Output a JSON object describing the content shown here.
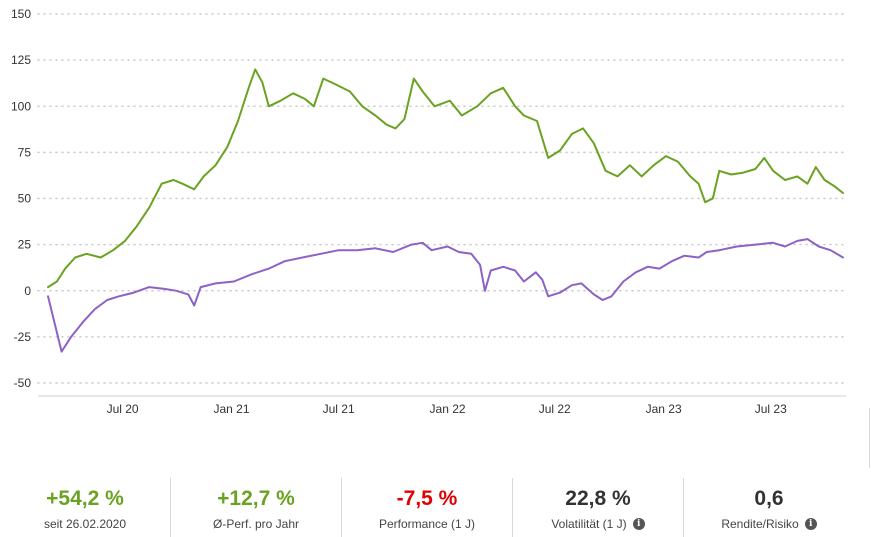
{
  "colors": {
    "green": "#6aa222",
    "purple": "#8c62c6",
    "red": "#e00000",
    "dark": "#333333"
  },
  "chart_data": {
    "type": "line",
    "x_range": [
      "2020-02-26",
      "2023-10-31"
    ],
    "ylim": [
      -50,
      150
    ],
    "yticks": [
      150,
      125,
      100,
      75,
      50,
      25,
      0,
      -25,
      -50
    ],
    "ytick_labels": [
      "150",
      "125",
      "100",
      "75",
      "50",
      "25",
      "0",
      "-25",
      "-50"
    ],
    "xticks": [
      {
        "date": "2020-07-01",
        "label": "Jul 20"
      },
      {
        "date": "2021-01-01",
        "label": "Jan 21"
      },
      {
        "date": "2021-07-01",
        "label": "Jul 21"
      },
      {
        "date": "2022-01-01",
        "label": "Jan 22"
      },
      {
        "date": "2022-07-01",
        "label": "Jul 22"
      },
      {
        "date": "2023-01-01",
        "label": "Jan 23"
      },
      {
        "date": "2023-07-01",
        "label": "Jul 23"
      }
    ],
    "grid": true,
    "series": [
      {
        "color": "green",
        "points": [
          [
            "2020-02-26",
            2
          ],
          [
            "2020-03-12",
            5
          ],
          [
            "2020-03-26",
            12
          ],
          [
            "2020-04-12",
            18
          ],
          [
            "2020-05-01",
            20
          ],
          [
            "2020-05-25",
            18
          ],
          [
            "2020-06-15",
            22
          ],
          [
            "2020-07-05",
            27
          ],
          [
            "2020-07-25",
            35
          ],
          [
            "2020-08-15",
            45
          ],
          [
            "2020-09-05",
            58
          ],
          [
            "2020-09-25",
            60
          ],
          [
            "2020-10-10",
            58
          ],
          [
            "2020-10-30",
            55
          ],
          [
            "2020-11-15",
            62
          ],
          [
            "2020-12-05",
            68
          ],
          [
            "2020-12-25",
            78
          ],
          [
            "2021-01-12",
            92
          ],
          [
            "2021-01-30",
            110
          ],
          [
            "2021-02-10",
            120
          ],
          [
            "2021-02-22",
            113
          ],
          [
            "2021-03-05",
            100
          ],
          [
            "2021-03-25",
            103
          ],
          [
            "2021-04-15",
            107
          ],
          [
            "2021-05-05",
            104
          ],
          [
            "2021-05-20",
            100
          ],
          [
            "2021-06-05",
            115
          ],
          [
            "2021-06-25",
            112
          ],
          [
            "2021-07-20",
            108
          ],
          [
            "2021-08-10",
            100
          ],
          [
            "2021-09-01",
            95
          ],
          [
            "2021-09-20",
            90
          ],
          [
            "2021-10-05",
            88
          ],
          [
            "2021-10-20",
            93
          ],
          [
            "2021-11-05",
            115
          ],
          [
            "2021-11-20",
            108
          ],
          [
            "2021-12-10",
            100
          ],
          [
            "2022-01-05",
            103
          ],
          [
            "2022-01-25",
            95
          ],
          [
            "2022-02-20",
            100
          ],
          [
            "2022-03-15",
            107
          ],
          [
            "2022-04-05",
            110
          ],
          [
            "2022-04-25",
            100
          ],
          [
            "2022-05-10",
            95
          ],
          [
            "2022-06-01",
            92
          ],
          [
            "2022-06-20",
            72
          ],
          [
            "2022-07-10",
            76
          ],
          [
            "2022-07-30",
            85
          ],
          [
            "2022-08-18",
            88
          ],
          [
            "2022-09-05",
            80
          ],
          [
            "2022-09-25",
            65
          ],
          [
            "2022-10-15",
            62
          ],
          [
            "2022-11-05",
            68
          ],
          [
            "2022-11-25",
            62
          ],
          [
            "2022-12-15",
            68
          ],
          [
            "2023-01-05",
            73
          ],
          [
            "2023-01-25",
            70
          ],
          [
            "2023-02-15",
            62
          ],
          [
            "2023-03-01",
            58
          ],
          [
            "2023-03-12",
            48
          ],
          [
            "2023-03-25",
            50
          ],
          [
            "2023-04-05",
            65
          ],
          [
            "2023-04-25",
            63
          ],
          [
            "2023-05-15",
            64
          ],
          [
            "2023-06-05",
            66
          ],
          [
            "2023-06-20",
            72
          ],
          [
            "2023-07-05",
            65
          ],
          [
            "2023-07-25",
            60
          ],
          [
            "2023-08-15",
            62
          ],
          [
            "2023-09-01",
            58
          ],
          [
            "2023-09-15",
            67
          ],
          [
            "2023-09-30",
            60
          ],
          [
            "2023-10-15",
            57
          ],
          [
            "2023-10-31",
            53
          ]
        ]
      },
      {
        "color": "purple",
        "points": [
          [
            "2020-02-26",
            -3
          ],
          [
            "2020-03-10",
            -20
          ],
          [
            "2020-03-20",
            -33
          ],
          [
            "2020-04-05",
            -25
          ],
          [
            "2020-04-25",
            -17
          ],
          [
            "2020-05-15",
            -10
          ],
          [
            "2020-06-05",
            -5
          ],
          [
            "2020-06-25",
            -3
          ],
          [
            "2020-07-20",
            -1
          ],
          [
            "2020-08-15",
            2
          ],
          [
            "2020-09-10",
            1
          ],
          [
            "2020-09-30",
            0
          ],
          [
            "2020-10-20",
            -2
          ],
          [
            "2020-10-30",
            -8
          ],
          [
            "2020-11-10",
            2
          ],
          [
            "2020-12-05",
            4
          ],
          [
            "2021-01-05",
            5
          ],
          [
            "2021-02-05",
            9
          ],
          [
            "2021-03-05",
            12
          ],
          [
            "2021-04-01",
            16
          ],
          [
            "2021-05-01",
            18
          ],
          [
            "2021-06-01",
            20
          ],
          [
            "2021-07-01",
            22
          ],
          [
            "2021-08-01",
            22
          ],
          [
            "2021-09-01",
            23
          ],
          [
            "2021-10-01",
            21
          ],
          [
            "2021-11-01",
            25
          ],
          [
            "2021-11-20",
            26
          ],
          [
            "2021-12-05",
            22
          ],
          [
            "2022-01-01",
            24
          ],
          [
            "2022-01-20",
            21
          ],
          [
            "2022-02-10",
            20
          ],
          [
            "2022-02-25",
            14
          ],
          [
            "2022-03-05",
            0
          ],
          [
            "2022-03-15",
            11
          ],
          [
            "2022-04-05",
            13
          ],
          [
            "2022-04-25",
            11
          ],
          [
            "2022-05-10",
            5
          ],
          [
            "2022-05-30",
            10
          ],
          [
            "2022-06-10",
            6
          ],
          [
            "2022-06-20",
            -3
          ],
          [
            "2022-07-10",
            -1
          ],
          [
            "2022-07-30",
            3
          ],
          [
            "2022-08-15",
            4
          ],
          [
            "2022-09-05",
            -2
          ],
          [
            "2022-09-20",
            -5
          ],
          [
            "2022-10-05",
            -3
          ],
          [
            "2022-10-25",
            5
          ],
          [
            "2022-11-15",
            10
          ],
          [
            "2022-12-05",
            13
          ],
          [
            "2022-12-25",
            12
          ],
          [
            "2023-01-15",
            16
          ],
          [
            "2023-02-05",
            19
          ],
          [
            "2023-03-01",
            18
          ],
          [
            "2023-03-15",
            21
          ],
          [
            "2023-04-05",
            22
          ],
          [
            "2023-05-05",
            24
          ],
          [
            "2023-06-05",
            25
          ],
          [
            "2023-07-05",
            26
          ],
          [
            "2023-07-25",
            24
          ],
          [
            "2023-08-15",
            27
          ],
          [
            "2023-09-01",
            28
          ],
          [
            "2023-09-20",
            24
          ],
          [
            "2023-10-10",
            22
          ],
          [
            "2023-10-31",
            18
          ]
        ]
      }
    ]
  },
  "stats": [
    {
      "value": "+54,2 %",
      "label": "seit 26.02.2020",
      "color": "green",
      "info": false
    },
    {
      "value": "+12,7 %",
      "label": "Ø-Perf. pro Jahr",
      "color": "green",
      "info": false
    },
    {
      "value": "-7,5 %",
      "label": "Performance (1 J)",
      "color": "red",
      "info": false
    },
    {
      "value": "22,8 %",
      "label": "Volatilität (1 J)",
      "color": "dark",
      "info": true
    },
    {
      "value": "0,6",
      "label": "Rendite/Risiko",
      "color": "dark",
      "info": true
    }
  ],
  "info_icon_glyph": "i"
}
